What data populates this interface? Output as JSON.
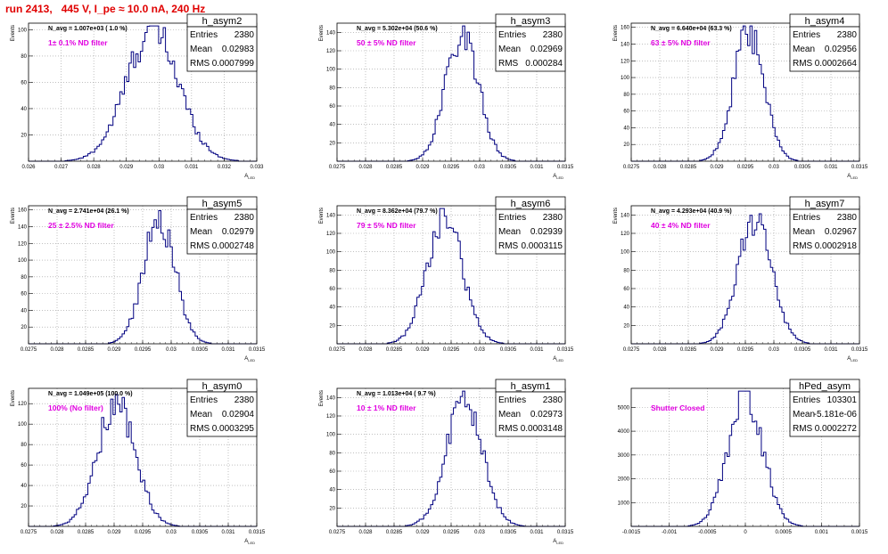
{
  "page": {
    "run_label": "run 2413,   445 V, I_pe ≈ 10.0 nA, 240 Hz"
  },
  "colors": {
    "histogram": "#000080",
    "annotation": "#e000e0",
    "title": "#e00000",
    "grid": "#9a9a9a",
    "frame": "#000000"
  },
  "stats_labels": {
    "entries": "Entries",
    "mean": "Mean",
    "rms": "RMS"
  },
  "chart_data": [
    {
      "type": "histogram",
      "name": "h_asym2",
      "xlabel": "A_LED",
      "ylabel": "Events",
      "xlim": [
        0.026,
        0.033
      ],
      "ylim": [
        0,
        105
      ],
      "grid": true,
      "xticks": [
        0.026,
        0.027,
        0.028,
        0.029,
        0.03,
        0.031,
        0.032,
        0.033
      ],
      "xtick_labels": [
        "0.026",
        "0.027",
        "0.028",
        "0.029",
        "0.03",
        "0.031",
        "0.032",
        "0.033"
      ],
      "yticks": [
        20,
        40,
        60,
        80,
        100
      ],
      "navg": "N_avg = 1.007e+03 ( 1.0 %)",
      "filter": "1± 0.1% ND filter",
      "entries": "2380",
      "mean": "0.02983",
      "rms": "0.0007999",
      "peak": 100,
      "peak_x": 0.0298,
      "sigma": 0.0008
    },
    {
      "type": "histogram",
      "name": "h_asym3",
      "xlabel": "A_LED",
      "ylabel": "Events",
      "xlim": [
        0.0275,
        0.0315
      ],
      "ylim": [
        0,
        150
      ],
      "grid": true,
      "xticks": [
        0.0275,
        0.028,
        0.0285,
        0.029,
        0.0295,
        0.03,
        0.0305,
        0.031,
        0.0315
      ],
      "xtick_labels": [
        "0.0275",
        "0.028",
        "0.0285",
        "0.029",
        "0.0295",
        "0.03",
        "0.0305",
        "0.031",
        "0.0315"
      ],
      "yticks": [
        20,
        40,
        60,
        80,
        100,
        120,
        140
      ],
      "navg": "N_avg = 5.302e+04 (50.6 %)",
      "filter": "50 ± 5% ND filter",
      "entries": "2380",
      "mean": "0.02969",
      "rms": "0.000284",
      "peak": 140,
      "peak_x": 0.02969,
      "sigma": 0.000284
    },
    {
      "type": "histogram",
      "name": "h_asym4",
      "xlabel": "A_LED",
      "ylabel": "Events",
      "xlim": [
        0.0275,
        0.0315
      ],
      "ylim": [
        0,
        165
      ],
      "grid": true,
      "xticks": [
        0.0275,
        0.028,
        0.0285,
        0.029,
        0.0295,
        0.03,
        0.0305,
        0.031,
        0.0315
      ],
      "xtick_labels": [
        "0.0275",
        "0.028",
        "0.0285",
        "0.029",
        "0.0295",
        "0.03",
        "0.0305",
        "0.031",
        "0.0315"
      ],
      "yticks": [
        20,
        40,
        60,
        80,
        100,
        120,
        140,
        160
      ],
      "navg": "N_avg = 6.640e+04 (63.3 %)",
      "filter": "63 ± 5% ND filter",
      "entries": "2380",
      "mean": "0.02956",
      "rms": "0.0002664",
      "peak": 152,
      "peak_x": 0.02956,
      "sigma": 0.000266
    },
    {
      "type": "histogram",
      "name": "h_asym5",
      "xlabel": "A_LED",
      "ylabel": "Events",
      "xlim": [
        0.0275,
        0.0315
      ],
      "ylim": [
        0,
        165
      ],
      "grid": true,
      "xticks": [
        0.0275,
        0.028,
        0.0285,
        0.029,
        0.0295,
        0.03,
        0.0305,
        0.031,
        0.0315
      ],
      "xtick_labels": [
        "0.0275",
        "0.028",
        "0.0285",
        "0.029",
        "0.0295",
        "0.03",
        "0.0305",
        "0.031",
        "0.0315"
      ],
      "yticks": [
        20,
        40,
        60,
        80,
        100,
        120,
        140,
        160
      ],
      "navg": "N_avg = 2.741e+04 (26.1 %)",
      "filter": "25 ± 2.5% ND filter",
      "entries": "2380",
      "mean": "0.02979",
      "rms": "0.0002748",
      "peak": 152,
      "peak_x": 0.02979,
      "sigma": 0.000275
    },
    {
      "type": "histogram",
      "name": "h_asym6",
      "xlabel": "A_LED",
      "ylabel": "Events",
      "xlim": [
        0.0275,
        0.0315
      ],
      "ylim": [
        0,
        150
      ],
      "grid": true,
      "xticks": [
        0.0275,
        0.028,
        0.0285,
        0.029,
        0.0295,
        0.03,
        0.0305,
        0.031,
        0.0315
      ],
      "xtick_labels": [
        "0.0275",
        "0.028",
        "0.0285",
        "0.029",
        "0.0295",
        "0.03",
        "0.0305",
        "0.031",
        "0.0315"
      ],
      "yticks": [
        20,
        40,
        60,
        80,
        100,
        120,
        140
      ],
      "navg": "N_avg = 8.362e+04 (79.7 %)",
      "filter": "79 ± 5% ND filter",
      "entries": "2380",
      "mean": "0.02939",
      "rms": "0.0003115",
      "peak": 138,
      "peak_x": 0.02939,
      "sigma": 0.000312
    },
    {
      "type": "histogram",
      "name": "h_asym7",
      "xlabel": "A_LED",
      "ylabel": "Events",
      "xlim": [
        0.0275,
        0.0315
      ],
      "ylim": [
        0,
        150
      ],
      "grid": true,
      "xticks": [
        0.0275,
        0.028,
        0.0285,
        0.029,
        0.0295,
        0.03,
        0.0305,
        0.031,
        0.0315
      ],
      "xtick_labels": [
        "0.0275",
        "0.028",
        "0.0285",
        "0.029",
        "0.0295",
        "0.03",
        "0.0305",
        "0.031",
        "0.0315"
      ],
      "yticks": [
        20,
        40,
        60,
        80,
        100,
        120,
        140
      ],
      "navg": "N_avg = 4.293e+04 (40.9 %)",
      "filter": "40 ± 4% ND filter",
      "entries": "2380",
      "mean": "0.02967",
      "rms": "0.0002918",
      "peak": 138,
      "peak_x": 0.02967,
      "sigma": 0.000292
    },
    {
      "type": "histogram",
      "name": "h_asym0",
      "xlabel": "A_LED",
      "ylabel": "Events",
      "xlim": [
        0.0275,
        0.0315
      ],
      "ylim": [
        0,
        135
      ],
      "grid": true,
      "xticks": [
        0.0275,
        0.028,
        0.0285,
        0.029,
        0.0295,
        0.03,
        0.0305,
        0.031,
        0.0315
      ],
      "xtick_labels": [
        "0.0275",
        "0.028",
        "0.0285",
        "0.029",
        "0.0295",
        "0.03",
        "0.0305",
        "0.031",
        "0.0315"
      ],
      "yticks": [
        20,
        40,
        60,
        80,
        100,
        120
      ],
      "navg": "N_avg = 1.049e+05 (100.0 %)",
      "filter": "100% (No filter)",
      "entries": "2380",
      "mean": "0.02904",
      "rms": "0.0003295",
      "peak": 122,
      "peak_x": 0.02904,
      "sigma": 0.00033
    },
    {
      "type": "histogram",
      "name": "h_asym1",
      "xlabel": "A_LED",
      "ylabel": "Events",
      "xlim": [
        0.0275,
        0.0315
      ],
      "ylim": [
        0,
        150
      ],
      "grid": true,
      "xticks": [
        0.0275,
        0.028,
        0.0285,
        0.029,
        0.0295,
        0.03,
        0.0305,
        0.031,
        0.0315
      ],
      "xtick_labels": [
        "0.0275",
        "0.028",
        "0.0285",
        "0.029",
        "0.0295",
        "0.03",
        "0.0305",
        "0.031",
        "0.0315"
      ],
      "yticks": [
        20,
        40,
        60,
        80,
        100,
        120,
        140
      ],
      "navg": "N_avg = 1.013e+04 ( 9.7 %)",
      "filter": "10 ± 1% ND filter",
      "entries": "2380",
      "mean": "0.02973",
      "rms": "0.0003148",
      "peak": 136,
      "peak_x": 0.02973,
      "sigma": 0.000315
    },
    {
      "type": "histogram",
      "name": "hPed_asym",
      "xlabel": "",
      "ylabel": "",
      "xlim": [
        -0.0015,
        0.0015
      ],
      "ylim": [
        0,
        5800
      ],
      "grid": true,
      "xticks": [
        -0.0015,
        -0.001,
        -0.0005,
        0,
        0.0005,
        0.001,
        0.0015
      ],
      "xtick_labels": [
        "-0.0015",
        "-0.001",
        "-0.0005",
        "0",
        "0.0005",
        "0.001",
        "0.0015"
      ],
      "yticks": [
        1000,
        2000,
        3000,
        4000,
        5000
      ],
      "navg": "",
      "filter": "Shutter Closed",
      "entries": "103301",
      "mean": "-5.181e-06",
      "rms": "0.0002272",
      "peak": 5600,
      "peak_x": 0,
      "sigma": 0.000227
    }
  ]
}
